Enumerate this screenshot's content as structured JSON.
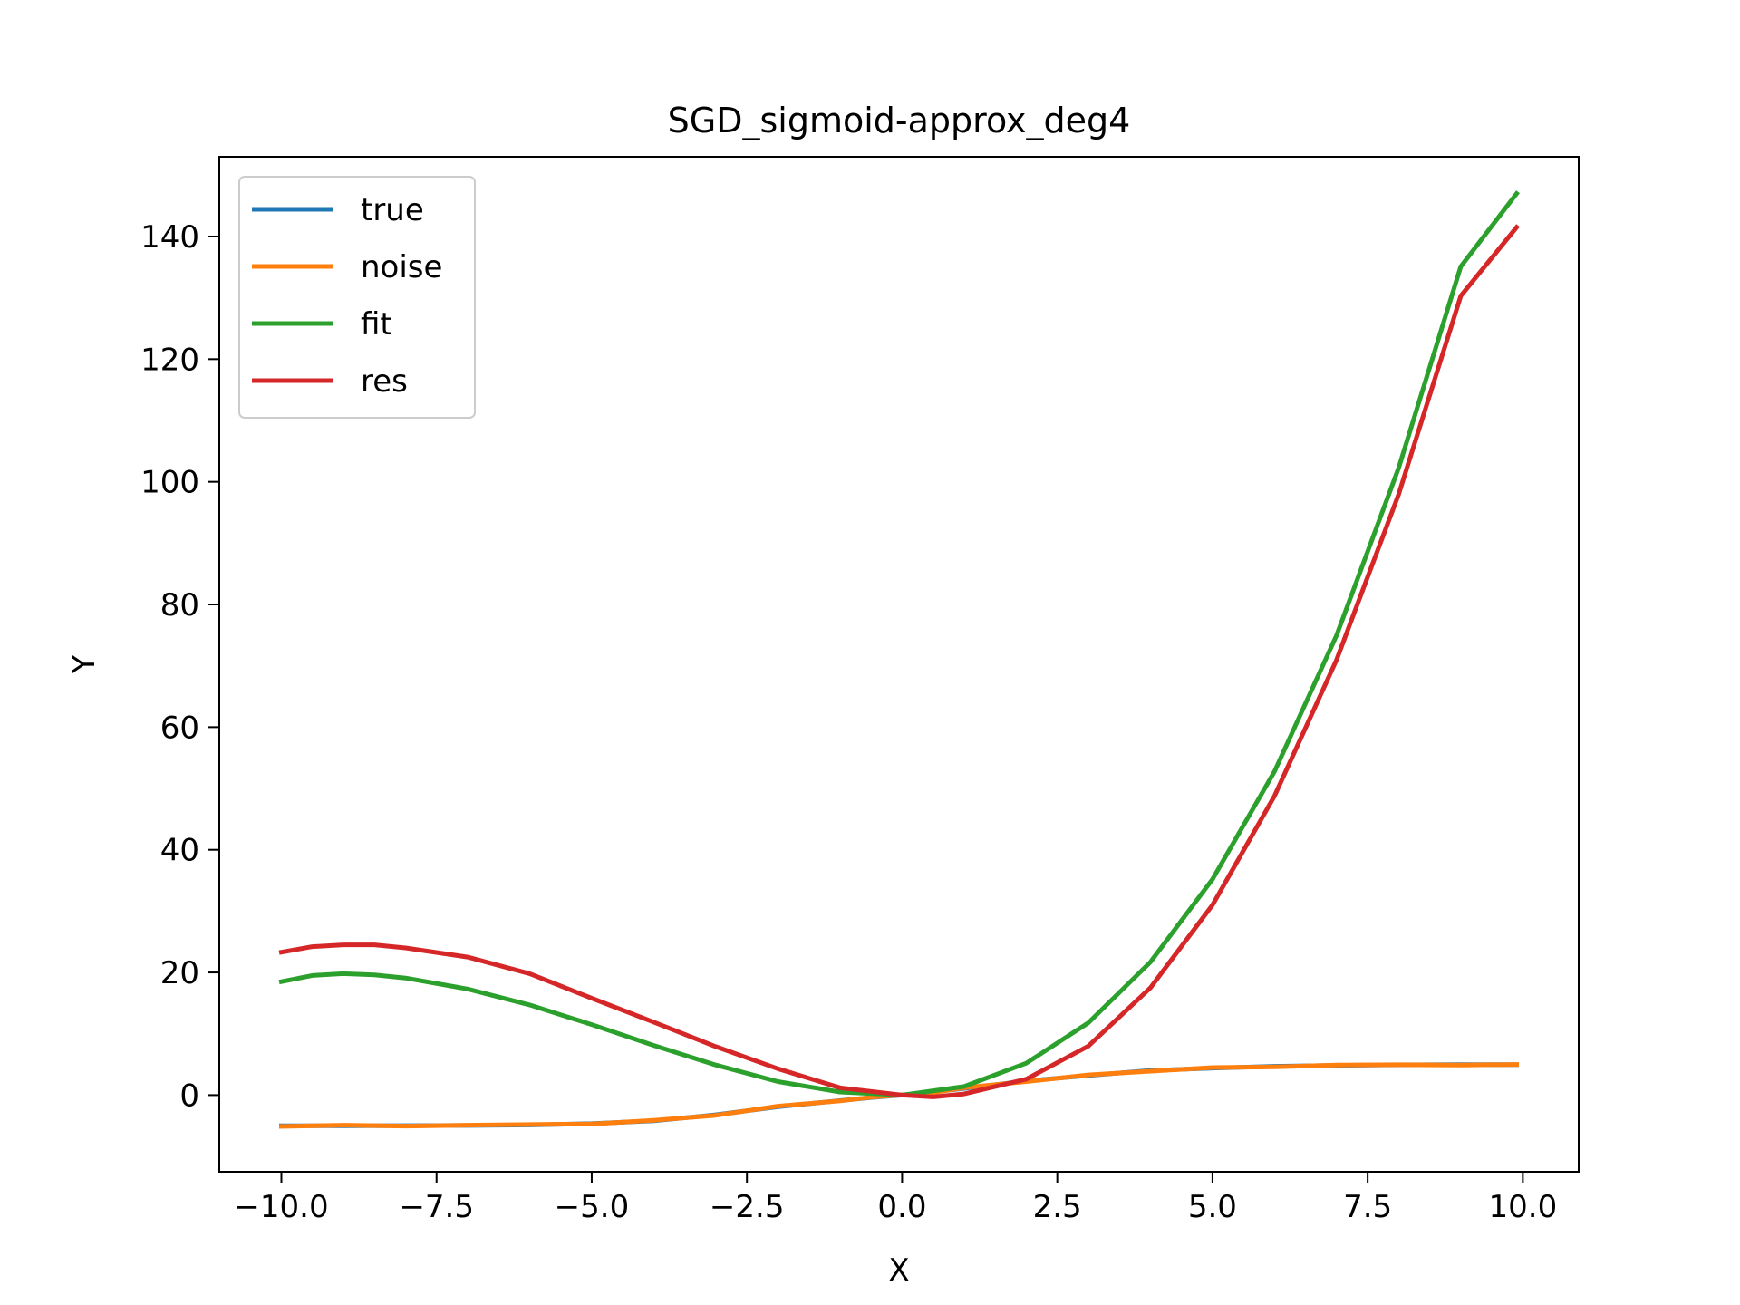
{
  "chart_data": {
    "type": "line",
    "title": "SGD_sigmoid-approx_deg4",
    "xlabel": "X",
    "ylabel": "Y",
    "xlim": [
      -11.0,
      10.9
    ],
    "ylim": [
      -12.5,
      153
    ],
    "xticks": [
      -10.0,
      -7.5,
      -5.0,
      -2.5,
      0.0,
      2.5,
      5.0,
      7.5,
      10.0
    ],
    "xtick_labels": [
      "−10.0",
      "−7.5",
      "−5.0",
      "−2.5",
      "0.0",
      "2.5",
      "5.0",
      "7.5",
      "10.0"
    ],
    "yticks": [
      0,
      20,
      40,
      60,
      80,
      100,
      120,
      140
    ],
    "ytick_labels": [
      "0",
      "20",
      "40",
      "60",
      "80",
      "100",
      "120",
      "140"
    ],
    "grid": false,
    "legend_position": "upper-left",
    "series": [
      {
        "name": "true",
        "color": "#1f77b4",
        "x": [
          -10,
          -9,
          -8,
          -7,
          -6,
          -5,
          -4,
          -3,
          -2,
          -1,
          -0.5,
          0,
          0.5,
          1,
          2,
          3,
          4,
          5,
          6,
          7,
          8,
          9,
          9.9
        ],
        "y": [
          -5.0,
          -4.99,
          -4.98,
          -4.95,
          -4.87,
          -4.66,
          -4.2,
          -3.2,
          -1.9,
          -0.9,
          -0.4,
          0.0,
          0.5,
          1.1,
          2.3,
          3.2,
          4.0,
          4.4,
          4.7,
          4.85,
          4.93,
          4.97,
          4.98
        ]
      },
      {
        "name": "noise",
        "color": "#ff7f0e",
        "x": [
          -10,
          -9,
          -8,
          -7,
          -6,
          -5,
          -4,
          -3,
          -2,
          -1,
          -0.5,
          0,
          0.5,
          1,
          2,
          3,
          4,
          5,
          6,
          7,
          8,
          9,
          9.9
        ],
        "y": [
          -5.1,
          -4.9,
          -5.05,
          -4.9,
          -4.8,
          -4.7,
          -4.1,
          -3.3,
          -1.8,
          -0.95,
          -0.35,
          0.05,
          0.4,
          1.2,
          2.2,
          3.3,
          3.9,
          4.5,
          4.6,
          4.9,
          4.95,
          4.9,
          5.0
        ]
      },
      {
        "name": "fit",
        "color": "#2ca02c",
        "x": [
          -10,
          -9.5,
          -9,
          -8.5,
          -8,
          -7,
          -6,
          -5,
          -4,
          -3,
          -2,
          -1,
          0,
          1,
          2,
          3,
          4,
          5,
          6,
          7,
          8,
          9,
          9.9
        ],
        "y": [
          18.5,
          19.5,
          19.8,
          19.6,
          19.1,
          17.3,
          14.7,
          11.5,
          8.1,
          4.9,
          2.2,
          0.5,
          0.0,
          1.4,
          5.2,
          11.8,
          21.7,
          35.2,
          52.8,
          75.0,
          102.3,
          135.1,
          147.0
        ]
      },
      {
        "name": "res",
        "color": "#d62728",
        "x": [
          -10,
          -9.5,
          -9,
          -8.5,
          -8,
          -7,
          -6,
          -5,
          -4,
          -3,
          -2,
          -1,
          -0.5,
          0,
          0.5,
          1,
          2,
          3,
          4,
          5,
          6,
          7,
          8,
          9,
          9.9
        ],
        "y": [
          23.3,
          24.2,
          24.5,
          24.5,
          24.0,
          22.5,
          19.8,
          15.8,
          11.9,
          7.9,
          4.3,
          1.2,
          0.6,
          0.0,
          -0.3,
          0.2,
          2.6,
          8.0,
          17.5,
          31.0,
          48.8,
          71.0,
          98.0,
          130.3,
          141.5
        ]
      }
    ]
  }
}
